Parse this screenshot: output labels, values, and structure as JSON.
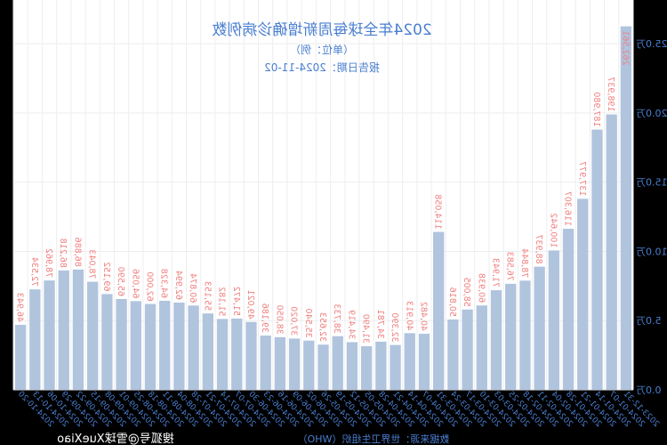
{
  "chart_data": {
    "type": "bar",
    "title": "2024年全球每周新增确诊病例数",
    "subtitle": "（单位：例）",
    "report_date": "报告日期：2024-11-02",
    "source": "数据来源：世界卫生组织（WHO）",
    "watermark": "搜狐号@雪球XueXiao",
    "categories": [
      "2023-12-31",
      "2024-01-07",
      "2024-01-14",
      "2024-01-21",
      "2024-01-28",
      "2024-02-04",
      "2024-02-11",
      "2024-02-18",
      "2024-02-25",
      "2024-03-03",
      "2024-03-10",
      "2024-03-17",
      "2024-03-24",
      "2024-03-31",
      "2024-04-07",
      "2024-04-14",
      "2024-04-21",
      "2024-04-28",
      "2024-05-05",
      "2024-05-12",
      "2024-05-19",
      "2024-05-26",
      "2024-06-02",
      "2024-06-09",
      "2024-06-16",
      "2024-06-23",
      "2024-06-30",
      "2024-07-07",
      "2024-07-14",
      "2024-07-21",
      "2024-07-28",
      "2024-08-04",
      "2024-08-11",
      "2024-08-18",
      "2024-08-25",
      "2024-09-01",
      "2024-09-08",
      "2024-09-15",
      "2024-09-22",
      "2024-09-29",
      "2024-10-06",
      "2024-10-13",
      "2024-10-20"
    ],
    "values": [
      262561,
      198937,
      187980,
      137977,
      116307,
      100642,
      88937,
      78844,
      76583,
      71943,
      60938,
      58005,
      50816,
      114058,
      40482,
      40913,
      32390,
      34781,
      31490,
      34419,
      38733,
      32653,
      35540,
      37020,
      38050,
      39186,
      49021,
      51472,
      51182,
      55153,
      60874,
      62994,
      64328,
      62000,
      64056,
      65590,
      69152,
      78043,
      86886,
      86218,
      78962,
      72534,
      46943
    ],
    "value_labels": [
      "262,561",
      "198,937",
      "187,980",
      "137,977",
      "116,307",
      "100,642",
      "88,937",
      "78,844",
      "76,583",
      "71,943",
      "60,938",
      "58,005",
      "50,816",
      "114,058",
      "40,482",
      "40,913",
      "32,390",
      "34,781",
      "31,490",
      "34,419",
      "38,733",
      "32,653",
      "35,540",
      "37,020",
      "38,050",
      "39,186",
      "49,021",
      "51,472",
      "51,182",
      "55,153",
      "60,874",
      "62,994",
      "64,328",
      "62,000",
      "64,056",
      "65,590",
      "69,152",
      "78,043",
      "86,886",
      "86,218",
      "78,962",
      "72,534",
      "46,943"
    ],
    "yticks": [
      "0.0万",
      "5.0万",
      "10.0万",
      "15.0万",
      "20.0万",
      "25.0万"
    ],
    "ytick_values": [
      0,
      50000,
      100000,
      150000,
      200000,
      250000
    ],
    "ylim": [
      0,
      270000
    ],
    "grid": true,
    "mirrored": true,
    "colors": {
      "bar": "#b0c4de",
      "value_label": "#f08080",
      "text": "#4a7fd0",
      "background": "#000000",
      "plot": "#ffffff"
    }
  }
}
